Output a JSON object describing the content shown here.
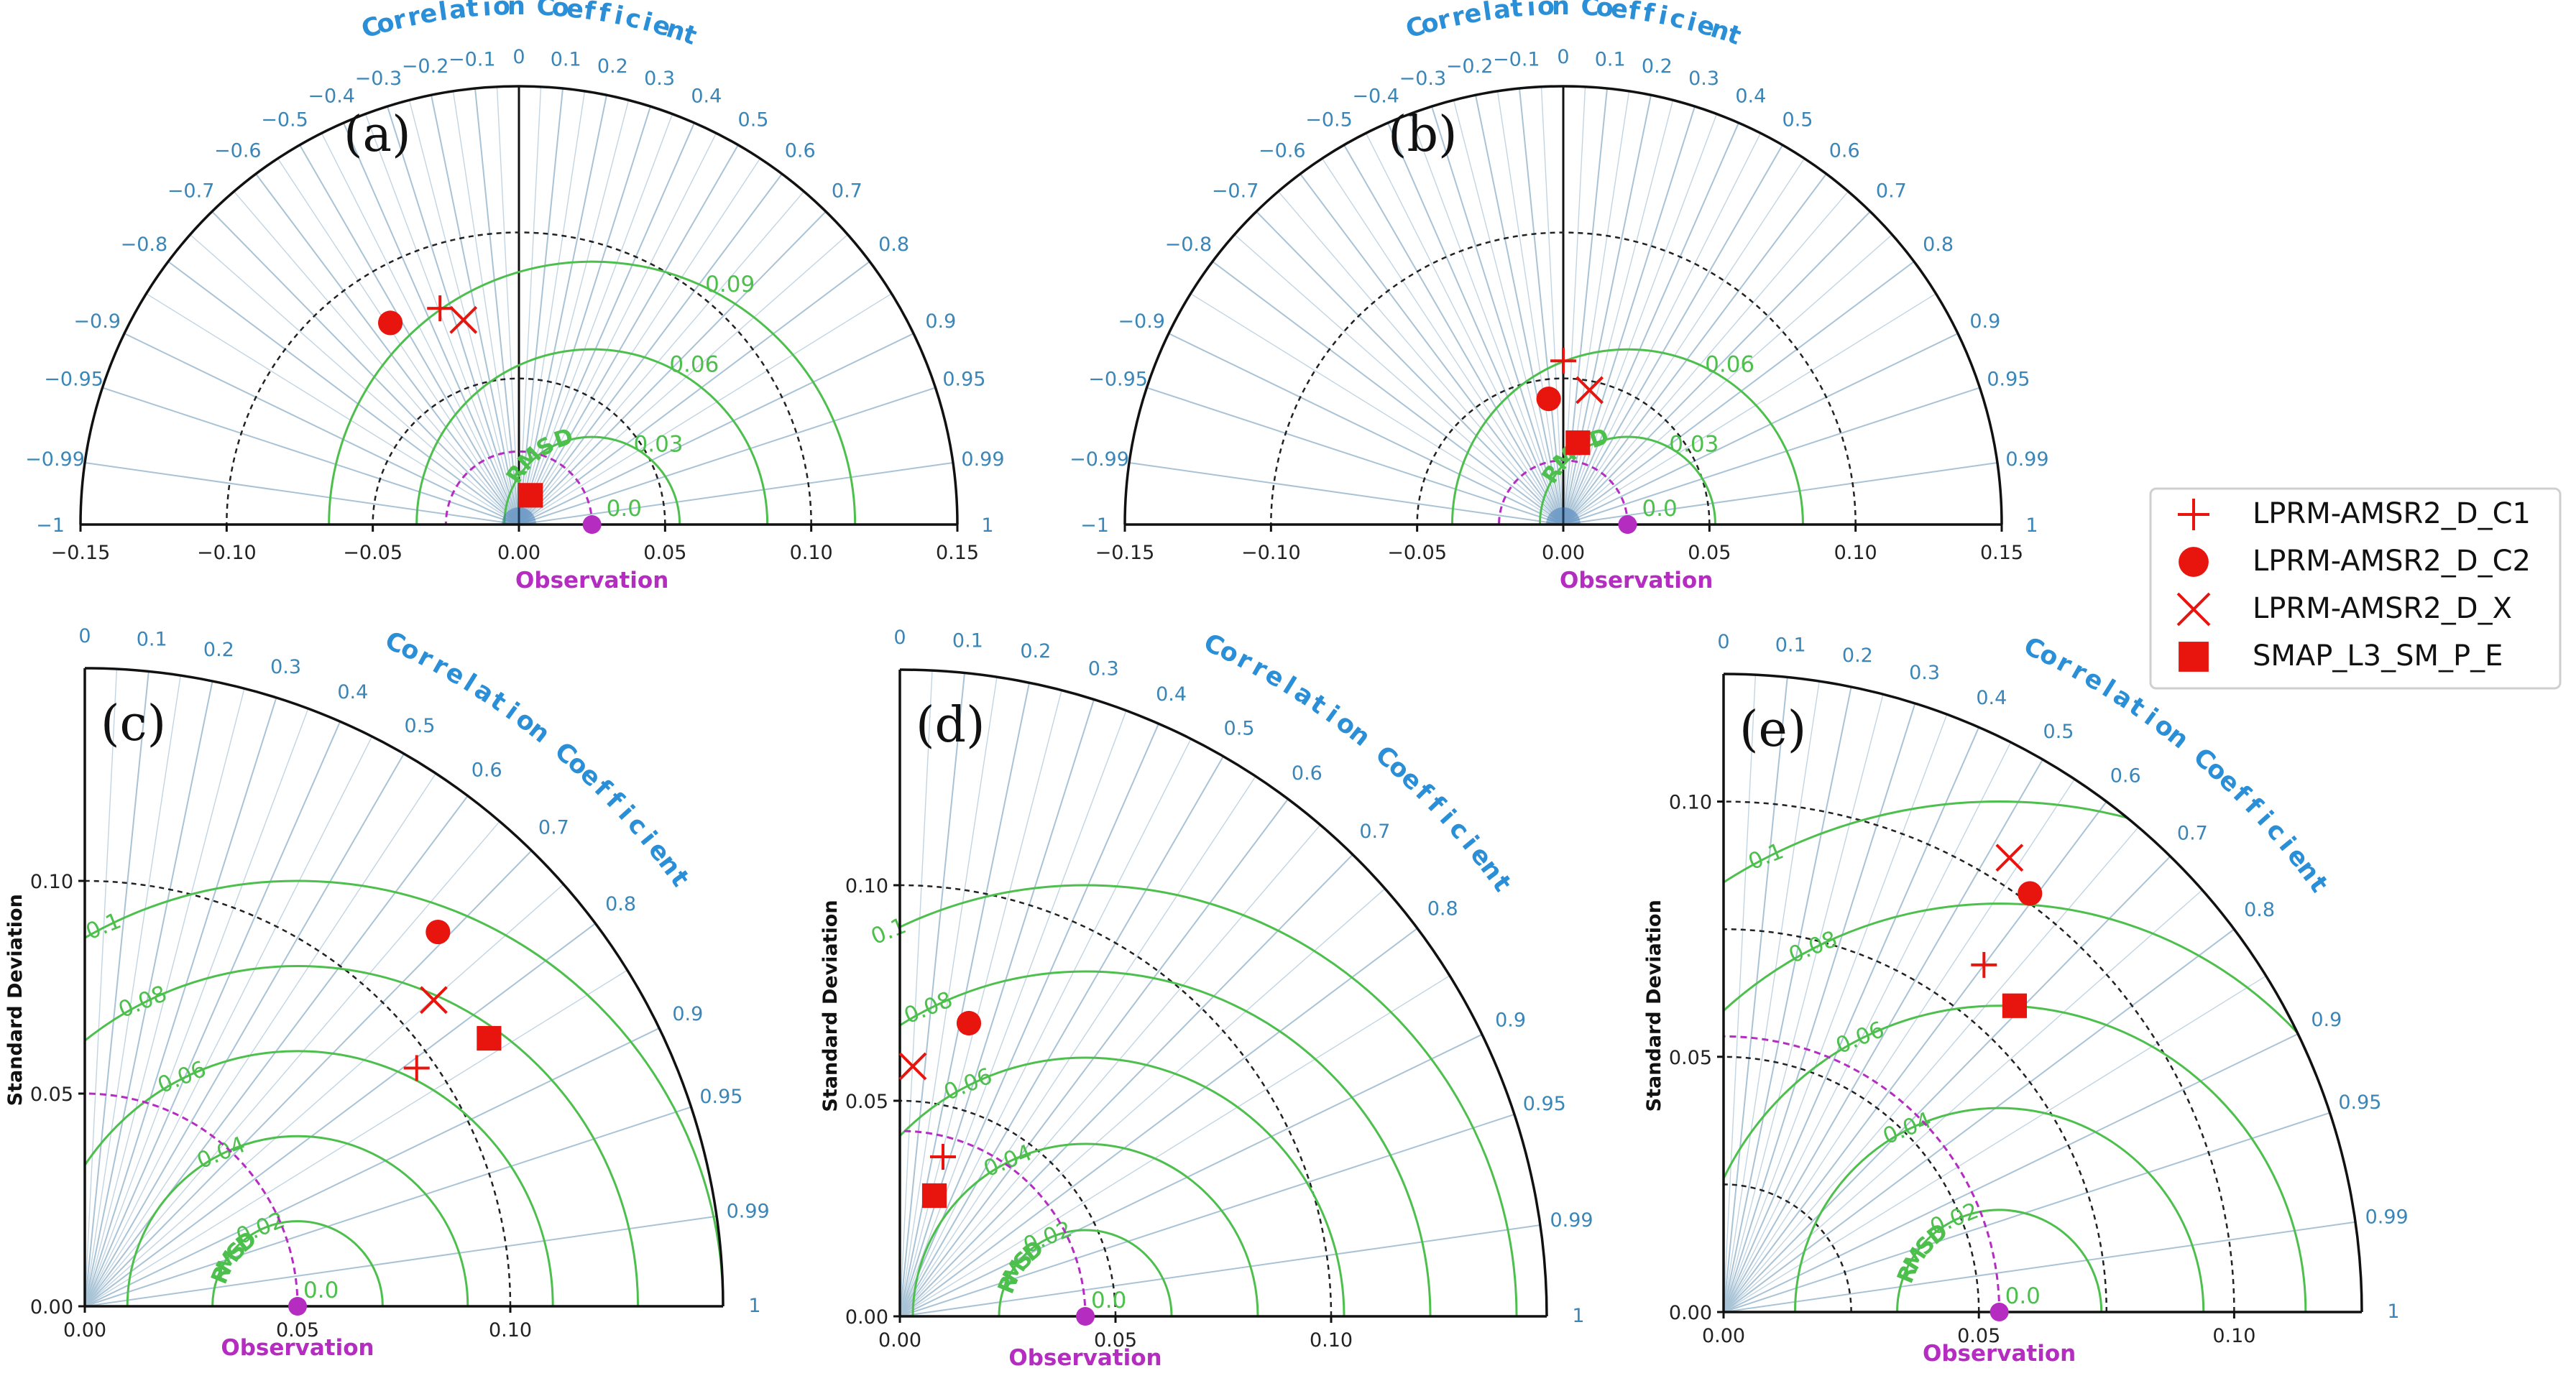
{
  "labels": {
    "correlation_title": "Correlation Coefficient",
    "observation": "Observation",
    "rmsd": "RMSD",
    "std_dev": "Standard Deviation"
  },
  "legend": [
    {
      "name": "LPRM-AMSR2_D_C1",
      "marker": "plus"
    },
    {
      "name": "LPRM-AMSR2_D_C2",
      "marker": "circle"
    },
    {
      "name": "LPRM-AMSR2_D_X",
      "marker": "x"
    },
    {
      "name": "SMAP_L3_SM_P_E",
      "marker": "square"
    }
  ],
  "colors": {
    "model": "#e8150f",
    "observation": "#b52cc1",
    "rmsd": "#4dbf4d",
    "grid": "#a9c3d6",
    "corr_text": "#3a86b8",
    "title": "#2a8fd6"
  },
  "chart_data": [
    {
      "type": "taylor-diagram",
      "panel": "(a)",
      "layout": "half",
      "xlim": [
        -0.15,
        0.15
      ],
      "xticks": [
        "−0.15",
        "−0.10",
        "−0.05",
        "0.00",
        "0.05",
        "0.10",
        "0.15"
      ],
      "corr_ticks": [
        "−1",
        "−0.99",
        "−0.95",
        "−0.9",
        "−0.8",
        "−0.7",
        "−0.6",
        "−0.5",
        "−0.4",
        "−0.3",
        "−0.2",
        "−0.1",
        "0",
        "0.1",
        "0.2",
        "0.3",
        "0.4",
        "0.5",
        "0.6",
        "0.7",
        "0.8",
        "0.9",
        "0.95",
        "0.99",
        "1"
      ],
      "std_circles": [
        0.05,
        0.1
      ],
      "rmsd_levels": [
        "0.03",
        "0.06",
        "0.09"
      ],
      "observation_std": 0.025,
      "legend_rmsd": "0.0",
      "points": [
        {
          "name": "LPRM-AMSR2_D_C1",
          "marker": "plus",
          "x": -0.027,
          "y": 0.074
        },
        {
          "name": "LPRM-AMSR2_D_C2",
          "marker": "circle",
          "x": -0.044,
          "y": 0.069
        },
        {
          "name": "LPRM-AMSR2_D_X",
          "marker": "x",
          "x": -0.019,
          "y": 0.07
        },
        {
          "name": "SMAP_L3_SM_P_E",
          "marker": "square",
          "x": 0.004,
          "y": 0.01
        }
      ]
    },
    {
      "type": "taylor-diagram",
      "panel": "(b)",
      "layout": "half",
      "xlim": [
        -0.15,
        0.15
      ],
      "xticks": [
        "−0.15",
        "−0.10",
        "−0.05",
        "0.00",
        "0.05",
        "0.10",
        "0.15"
      ],
      "corr_ticks": [
        "−1",
        "−0.99",
        "−0.95",
        "−0.9",
        "−0.8",
        "−0.7",
        "−0.6",
        "−0.5",
        "−0.4",
        "−0.3",
        "−0.2",
        "−0.1",
        "0",
        "0.1",
        "0.2",
        "0.3",
        "0.4",
        "0.5",
        "0.6",
        "0.7",
        "0.8",
        "0.9",
        "0.95",
        "0.99",
        "1"
      ],
      "std_circles": [
        0.05,
        0.1
      ],
      "rmsd_levels": [
        "0.03",
        "0.06"
      ],
      "observation_std": 0.022,
      "legend_rmsd": "0.0",
      "points": [
        {
          "name": "LPRM-AMSR2_D_C1",
          "marker": "plus",
          "x": 0.0,
          "y": 0.056
        },
        {
          "name": "LPRM-AMSR2_D_C2",
          "marker": "circle",
          "x": -0.005,
          "y": 0.043
        },
        {
          "name": "LPRM-AMSR2_D_X",
          "marker": "x",
          "x": 0.009,
          "y": 0.046
        },
        {
          "name": "SMAP_L3_SM_P_E",
          "marker": "square",
          "x": 0.005,
          "y": 0.028
        }
      ]
    },
    {
      "type": "taylor-diagram",
      "panel": "(c)",
      "layout": "quarter",
      "rmax": 0.15,
      "xticks": [
        "0.00",
        "0.05",
        "0.10"
      ],
      "yticks": [
        "0.00",
        "0.05",
        "0.10"
      ],
      "corr_ticks": [
        "0",
        "0.1",
        "0.2",
        "0.3",
        "0.4",
        "0.5",
        "0.6",
        "0.7",
        "0.8",
        "0.9",
        "0.95",
        "0.99",
        "1"
      ],
      "std_circles": [
        0.1
      ],
      "rmsd_levels": [
        "0.02",
        "0.04",
        "0.06",
        "0.08",
        "0.1"
      ],
      "observation_std": 0.05,
      "legend_rmsd": "0.0",
      "points": [
        {
          "name": "LPRM-AMSR2_D_C1",
          "marker": "plus",
          "x": 0.078,
          "y": 0.056
        },
        {
          "name": "LPRM-AMSR2_D_C2",
          "marker": "circle",
          "x": 0.083,
          "y": 0.088
        },
        {
          "name": "LPRM-AMSR2_D_X",
          "marker": "x",
          "x": 0.082,
          "y": 0.072
        },
        {
          "name": "SMAP_L3_SM_P_E",
          "marker": "square",
          "x": 0.095,
          "y": 0.063
        }
      ]
    },
    {
      "type": "taylor-diagram",
      "panel": "(d)",
      "layout": "quarter",
      "rmax": 0.15,
      "xticks": [
        "0.00",
        "0.05",
        "0.10"
      ],
      "yticks": [
        "0.00",
        "0.05",
        "0.10"
      ],
      "corr_ticks": [
        "0",
        "0.1",
        "0.2",
        "0.3",
        "0.4",
        "0.5",
        "0.6",
        "0.7",
        "0.8",
        "0.9",
        "0.95",
        "0.99",
        "1"
      ],
      "std_circles": [
        0.05,
        0.1
      ],
      "rmsd_levels": [
        "0.02",
        "0.04",
        "0.06",
        "0.08",
        "0.1"
      ],
      "observation_std": 0.043,
      "legend_rmsd": "0.0",
      "points": [
        {
          "name": "LPRM-AMSR2_D_C1",
          "marker": "plus",
          "x": 0.01,
          "y": 0.037
        },
        {
          "name": "LPRM-AMSR2_D_C2",
          "marker": "circle",
          "x": 0.016,
          "y": 0.068
        },
        {
          "name": "LPRM-AMSR2_D_X",
          "marker": "x",
          "x": 0.003,
          "y": 0.058
        },
        {
          "name": "SMAP_L3_SM_P_E",
          "marker": "square",
          "x": 0.008,
          "y": 0.028
        }
      ]
    },
    {
      "type": "taylor-diagram",
      "panel": "(e)",
      "layout": "quarter",
      "rmax": 0.125,
      "xticks": [
        "0.00",
        "0.05",
        "0.10"
      ],
      "yticks": [
        "0.00",
        "0.05",
        "0.10"
      ],
      "corr_ticks": [
        "0",
        "0.1",
        "0.2",
        "0.3",
        "0.4",
        "0.5",
        "0.6",
        "0.7",
        "0.8",
        "0.9",
        "0.95",
        "0.99",
        "1"
      ],
      "std_circles": [
        0.025,
        0.05,
        0.075,
        0.1
      ],
      "rmsd_levels": [
        "0.02",
        "0.04",
        "0.06",
        "0.08",
        "0.1"
      ],
      "observation_std": 0.054,
      "legend_rmsd": "0.0",
      "points": [
        {
          "name": "LPRM-AMSR2_D_C1",
          "marker": "plus",
          "x": 0.051,
          "y": 0.068
        },
        {
          "name": "LPRM-AMSR2_D_C2",
          "marker": "circle",
          "x": 0.06,
          "y": 0.082
        },
        {
          "name": "LPRM-AMSR2_D_X",
          "marker": "x",
          "x": 0.056,
          "y": 0.089
        },
        {
          "name": "SMAP_L3_SM_P_E",
          "marker": "square",
          "x": 0.057,
          "y": 0.06
        }
      ]
    }
  ]
}
